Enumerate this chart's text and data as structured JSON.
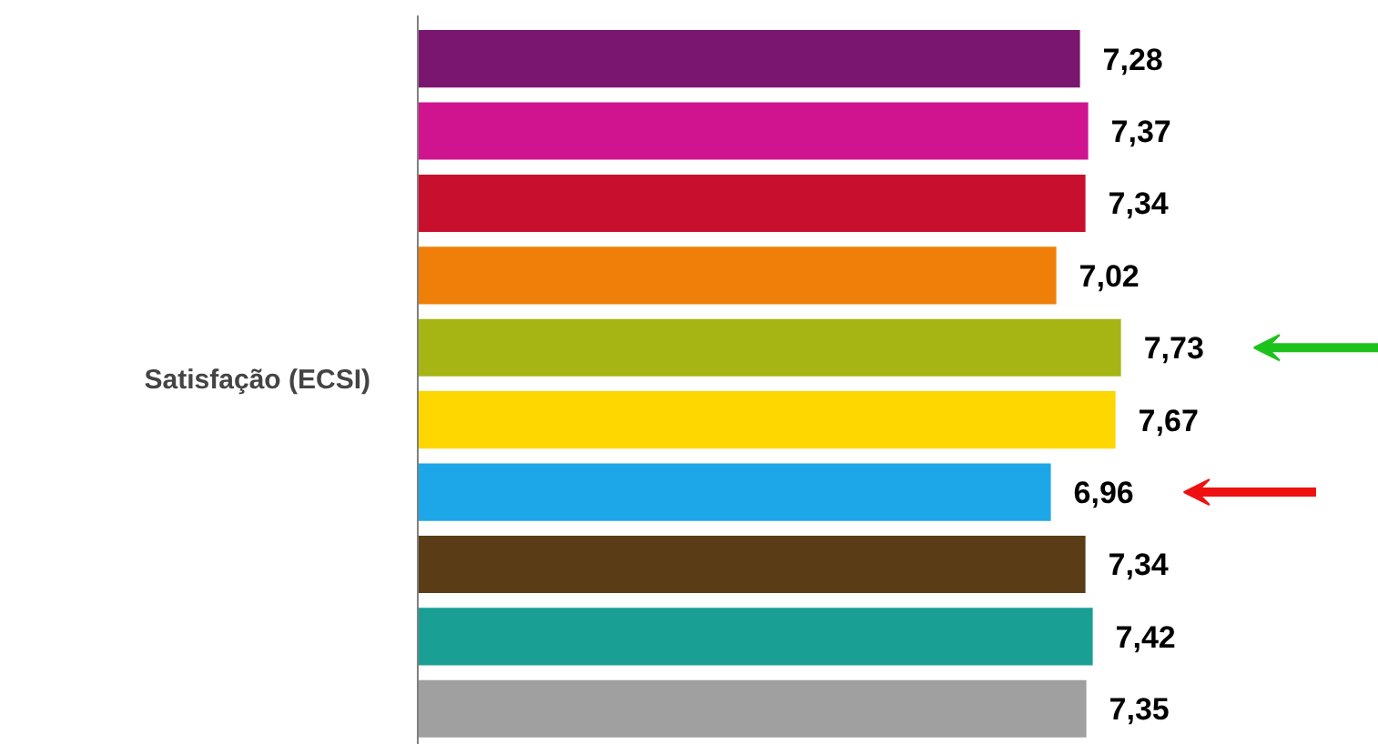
{
  "chart_data": {
    "type": "bar",
    "orientation": "horizontal",
    "ylabel": "Satisfação (ECSI)",
    "categories": [
      null,
      null,
      null,
      null,
      null,
      null,
      null,
      null,
      null,
      null
    ],
    "values": [
      7.28,
      7.37,
      7.34,
      7.02,
      7.73,
      7.67,
      6.96,
      7.34,
      7.42,
      7.35
    ],
    "colors": [
      "#7b1670",
      "#d0148f",
      "#c8102e",
      "#f07f09",
      "#a6b514",
      "#ffd700",
      "#1ea7e8",
      "#5a3c17",
      "#1a9f95",
      "#a0a0a0"
    ],
    "value_labels": [
      "7,28",
      "7,37",
      "7,34",
      "7,02",
      "7,73",
      "7,67",
      "6,96",
      "7,34",
      "7,42",
      "7,35"
    ]
  }
}
